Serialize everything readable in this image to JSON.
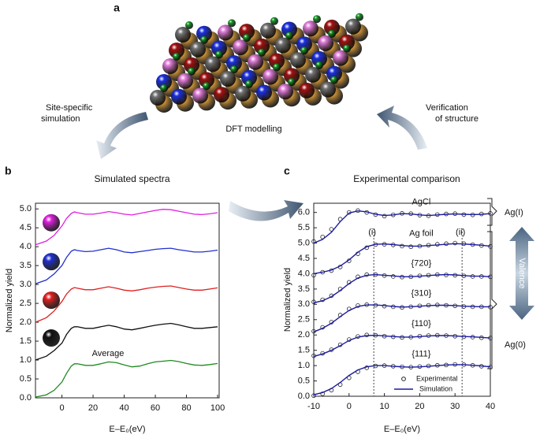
{
  "figure": {
    "panels": [
      "a",
      "b",
      "c"
    ],
    "dft": "DFT modelling",
    "left_arrow": [
      "Site-specific",
      "simulation"
    ],
    "right_arrow": [
      "Verification",
      "of structure"
    ],
    "ag1": "Ag(I)",
    "ag0": "Ag(0)",
    "valence": "Valence"
  },
  "chart_data": [
    {
      "type": "line",
      "title": "Simulated spectra",
      "x_label": "E–E₀(eV)",
      "y_label": "Normalized yield",
      "xlim": [
        -17,
        101
      ],
      "ylim": [
        0,
        5.15
      ],
      "xticks": [
        0,
        20,
        40,
        60,
        80,
        100
      ],
      "yticks": [
        {
          "value": 0,
          "label": "0.0"
        },
        {
          "value": 0.5,
          "label": "0.5"
        },
        {
          "value": 1,
          "label": "1.0"
        },
        {
          "value": 1.5,
          "label": "1.5"
        },
        {
          "value": 2,
          "label": "2.0"
        },
        {
          "value": 2.5,
          "label": "2.5"
        },
        {
          "value": 3,
          "label": "3.0"
        },
        {
          "value": 3.5,
          "label": "3.5"
        },
        {
          "value": 4,
          "label": "4.0"
        },
        {
          "value": 4.5,
          "label": "4.5"
        },
        {
          "value": 5,
          "label": "5.0"
        }
      ],
      "x": [
        -17,
        -10,
        -5,
        0,
        3,
        6,
        8,
        10,
        15,
        20,
        25,
        30,
        35,
        40,
        45,
        50,
        55,
        60,
        65,
        70,
        75,
        80,
        85,
        90,
        95,
        100
      ],
      "series": [
        {
          "name": "Average",
          "color": "#1f8a1f",
          "values": [
            0.02,
            0.08,
            0.2,
            0.42,
            0.65,
            0.84,
            0.9,
            0.9,
            0.86,
            0.86,
            0.9,
            0.95,
            0.93,
            0.87,
            0.82,
            0.84,
            0.9,
            0.95,
            0.97,
            0.99,
            0.96,
            0.91,
            0.87,
            0.86,
            0.88,
            0.91
          ]
        },
        {
          "color": "#111111",
          "values": [
            1.0,
            1.1,
            1.25,
            1.45,
            1.68,
            1.84,
            1.88,
            1.88,
            1.84,
            1.84,
            1.88,
            1.92,
            1.88,
            1.82,
            1.8,
            1.84,
            1.88,
            1.92,
            1.95,
            1.97,
            1.93,
            1.88,
            1.84,
            1.84,
            1.86,
            1.88
          ]
        },
        {
          "color": "#e02020",
          "values": [
            2.0,
            2.12,
            2.3,
            2.55,
            2.75,
            2.88,
            2.92,
            2.9,
            2.86,
            2.86,
            2.9,
            2.94,
            2.9,
            2.85,
            2.83,
            2.86,
            2.9,
            2.93,
            2.95,
            2.96,
            2.92,
            2.88,
            2.85,
            2.85,
            2.88,
            2.91
          ]
        },
        {
          "color": "#2030d0",
          "values": [
            3.02,
            3.12,
            3.28,
            3.5,
            3.72,
            3.88,
            3.92,
            3.9,
            3.87,
            3.88,
            3.92,
            3.96,
            3.92,
            3.86,
            3.84,
            3.87,
            3.9,
            3.93,
            3.95,
            3.96,
            3.92,
            3.89,
            3.86,
            3.86,
            3.88,
            3.91
          ]
        },
        {
          "color": "#e020e0",
          "values": [
            4.05,
            4.15,
            4.3,
            4.55,
            4.75,
            4.88,
            4.92,
            4.9,
            4.86,
            4.86,
            4.89,
            4.93,
            4.9,
            4.86,
            4.84,
            4.88,
            4.92,
            4.96,
            4.99,
            4.98,
            4.94,
            4.9,
            4.86,
            4.85,
            4.87,
            4.9
          ]
        }
      ]
    },
    {
      "type": "spectra",
      "title": "Experimental comparison",
      "x_label": "E–E₀(eV)",
      "y_label": "Normalized yield",
      "xlim": [
        -10,
        40
      ],
      "ylim": [
        0,
        6.3
      ],
      "xticks": [
        -10,
        0,
        10,
        20,
        30,
        40
      ],
      "yticks": [
        {
          "value": 0,
          "label": "0.0"
        },
        {
          "value": 0.5,
          "label": "0.5"
        },
        {
          "value": 1,
          "label": "1.0"
        },
        {
          "value": 1.5,
          "label": "1.5"
        },
        {
          "value": 2,
          "label": "2.0"
        },
        {
          "value": 2.5,
          "label": "2.5"
        },
        {
          "value": 3,
          "label": "3.0"
        },
        {
          "value": 3.5,
          "label": "3.5"
        },
        {
          "value": 4,
          "label": "4.0"
        },
        {
          "value": 4.5,
          "label": "4.5"
        },
        {
          "value": 5,
          "label": "5.0"
        },
        {
          "value": 5.5,
          "label": "5.5"
        },
        {
          "value": 6,
          "label": "6.0"
        }
      ],
      "simulation_color": "#1a1aa0",
      "legend": {
        "experimental": "Experimental",
        "simulation": "Simulation"
      },
      "reference_lines": [
        {
          "value": 7,
          "label": "(i)"
        },
        {
          "value": 32,
          "label": "(ii)"
        }
      ],
      "x": [
        -10,
        -7.5,
        -5,
        -2.5,
        0,
        2.5,
        5,
        7.5,
        10,
        12.5,
        15,
        17.5,
        20,
        22.5,
        25,
        27.5,
        30,
        32.5,
        35,
        37.5,
        40
      ],
      "spectra": [
        {
          "name": "AgCl",
          "simulation": [
            5.0,
            5.12,
            5.35,
            5.7,
            5.98,
            6.05,
            6.02,
            5.94,
            5.9,
            5.92,
            5.96,
            5.95,
            5.92,
            5.9,
            5.92,
            5.94,
            5.95,
            5.94,
            5.93,
            5.94,
            5.96
          ],
          "experimental": [
            5.05,
            5.2,
            5.45,
            5.78,
            6.0,
            6.06,
            6.0,
            5.93,
            5.88,
            5.92,
            5.97,
            5.96,
            5.91,
            5.89,
            5.93,
            5.95,
            5.96,
            5.93,
            5.92,
            5.95,
            5.97
          ]
        },
        {
          "name": "Ag foil",
          "simulation": [
            4.0,
            4.05,
            4.12,
            4.25,
            4.45,
            4.7,
            4.88,
            4.96,
            4.97,
            4.95,
            4.92,
            4.9,
            4.9,
            4.92,
            4.94,
            4.96,
            4.98,
            4.97,
            4.95,
            4.93,
            4.9
          ],
          "experimental": [
            3.95,
            4.05,
            4.1,
            4.22,
            4.42,
            4.65,
            4.85,
            4.95,
            4.96,
            4.94,
            4.9,
            4.88,
            4.9,
            4.93,
            4.96,
            4.98,
            5.0,
            4.98,
            4.95,
            4.92,
            4.89
          ]
        },
        {
          "name": "{720}",
          "simulation": [
            3.05,
            3.12,
            3.25,
            3.45,
            3.68,
            3.86,
            3.95,
            3.97,
            3.95,
            3.93,
            3.9,
            3.9,
            3.92,
            3.94,
            3.96,
            3.97,
            3.96,
            3.94,
            3.92,
            3.92,
            3.9
          ],
          "experimental": [
            3.08,
            3.15,
            3.28,
            3.5,
            3.72,
            3.9,
            3.97,
            3.97,
            3.94,
            3.91,
            3.89,
            3.9,
            3.93,
            3.95,
            3.97,
            3.96,
            3.95,
            3.93,
            3.91,
            3.91,
            3.9
          ]
        },
        {
          "name": "{310}",
          "simulation": [
            2.1,
            2.22,
            2.38,
            2.6,
            2.8,
            2.93,
            2.98,
            2.98,
            2.96,
            2.93,
            2.91,
            2.92,
            2.94,
            2.96,
            2.97,
            2.97,
            2.96,
            2.94,
            2.93,
            2.92,
            2.92
          ],
          "experimental": [
            2.12,
            2.25,
            2.42,
            2.65,
            2.85,
            2.96,
            2.99,
            2.97,
            2.94,
            2.92,
            2.9,
            2.92,
            2.95,
            2.97,
            2.98,
            2.97,
            2.95,
            2.93,
            2.92,
            2.92,
            2.91
          ]
        },
        {
          "name": "{110}",
          "simulation": [
            1.3,
            1.38,
            1.5,
            1.65,
            1.82,
            1.93,
            1.98,
            1.99,
            1.97,
            1.95,
            1.93,
            1.93,
            1.95,
            1.97,
            1.98,
            1.98,
            1.97,
            1.95,
            1.94,
            1.92,
            1.9
          ],
          "experimental": [
            1.32,
            1.4,
            1.52,
            1.68,
            1.85,
            1.95,
            2.0,
            1.99,
            1.96,
            1.94,
            1.92,
            1.93,
            1.96,
            1.98,
            1.99,
            1.98,
            1.96,
            1.94,
            1.93,
            1.91,
            1.9
          ]
        },
        {
          "name": "{111}",
          "simulation": [
            0.05,
            0.12,
            0.25,
            0.45,
            0.68,
            0.86,
            0.96,
            1.0,
            1.0,
            0.98,
            0.96,
            0.95,
            0.96,
            0.98,
            1.0,
            1.02,
            1.03,
            1.03,
            1.01,
            0.99,
            0.96
          ],
          "experimental": [
            0.02,
            0.08,
            0.2,
            0.38,
            0.6,
            0.8,
            0.93,
            0.99,
            1.0,
            0.98,
            0.96,
            0.95,
            0.97,
            0.99,
            1.01,
            1.02,
            1.04,
            1.03,
            1.01,
            0.98,
            0.95
          ]
        }
      ]
    }
  ]
}
